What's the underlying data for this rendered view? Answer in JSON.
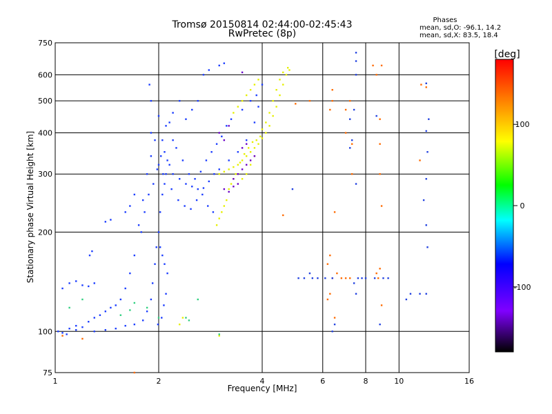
{
  "chart_data": {
    "type": "scatter",
    "title": "Tromsø 20150814 02:44:00-02:45:43",
    "subtitle": "RwPretec (8p)",
    "xlabel": "Frequency [MHz]",
    "ylabel": "Stationary phase Virtual Height [km]",
    "x_scale": "log",
    "y_scale": "log",
    "xlim": [
      1,
      16
    ],
    "ylim": [
      75,
      750
    ],
    "xticks": [
      1,
      2,
      4,
      6,
      8,
      10,
      16
    ],
    "yticks": [
      75,
      100,
      200,
      300,
      400,
      500,
      600,
      750
    ],
    "grid": true,
    "phase_stats": {
      "heading": "Phases",
      "line_o": "mean, sd,O: -96.1, 14.2",
      "line_x": "mean, sd,X:  83.5, 18.4"
    },
    "colorbar": {
      "label": "[deg]",
      "ticks": [
        100,
        0,
        -100
      ],
      "range": [
        -180,
        180
      ],
      "colors": [
        "#000000",
        "#8000ff",
        "#0000ff",
        "#00ffff",
        "#00ff00",
        "#ffff00",
        "#ff8000",
        "#ff0000"
      ]
    },
    "series": [
      {
        "description_key": "o-mode",
        "phase_deg": -100,
        "color": "#1a3cff",
        "points": [
          [
            1.02,
            100
          ],
          [
            1.05,
            99
          ],
          [
            1.1,
            102
          ],
          [
            1.15,
            101
          ],
          [
            1.2,
            103
          ],
          [
            1.3,
            100
          ],
          [
            1.4,
            101
          ],
          [
            1.5,
            102
          ],
          [
            1.6,
            104
          ],
          [
            1.7,
            105
          ],
          [
            1.8,
            108
          ],
          [
            1.85,
            115
          ],
          [
            1.9,
            125
          ],
          [
            1.92,
            140
          ],
          [
            1.95,
            160
          ],
          [
            1.97,
            180
          ],
          [
            2.0,
            200
          ],
          [
            2.02,
            230
          ],
          [
            2.05,
            260
          ],
          [
            2.08,
            280
          ],
          [
            2.1,
            300
          ],
          [
            2.15,
            320
          ],
          [
            2.2,
            300
          ],
          [
            2.3,
            290
          ],
          [
            2.4,
            280
          ],
          [
            2.5,
            275
          ],
          [
            2.6,
            270
          ],
          [
            2.7,
            272
          ],
          [
            2.8,
            285
          ],
          [
            2.9,
            300
          ],
          [
            3.0,
            310
          ],
          [
            3.2,
            330
          ],
          [
            3.4,
            350
          ],
          [
            3.6,
            380
          ],
          [
            3.8,
            430
          ],
          [
            3.9,
            480
          ],
          [
            4.0,
            560
          ],
          [
            1.05,
            135
          ],
          [
            1.1,
            140
          ],
          [
            1.15,
            142
          ],
          [
            1.2,
            138
          ],
          [
            1.25,
            137
          ],
          [
            1.3,
            140
          ],
          [
            1.28,
            175
          ],
          [
            1.26,
            170
          ],
          [
            1.4,
            215
          ],
          [
            1.45,
            218
          ],
          [
            1.6,
            230
          ],
          [
            1.65,
            240
          ],
          [
            1.7,
            260
          ],
          [
            1.85,
            300
          ],
          [
            1.9,
            400
          ],
          [
            1.9,
            500
          ],
          [
            1.88,
            560
          ],
          [
            2.0,
            450
          ],
          [
            2.05,
            380
          ],
          [
            2.1,
            420
          ],
          [
            2.2,
            380
          ],
          [
            2.4,
            440
          ],
          [
            2.6,
            500
          ],
          [
            2.7,
            600
          ],
          [
            2.8,
            620
          ],
          [
            3.0,
            640
          ],
          [
            3.1,
            650
          ],
          [
            2.5,
            470
          ],
          [
            2.3,
            500
          ],
          [
            2.2,
            460
          ],
          [
            2.15,
            430
          ],
          [
            2.08,
            350
          ],
          [
            2.0,
            320
          ],
          [
            1.95,
            380
          ],
          [
            1.8,
            250
          ],
          [
            1.75,
            210
          ],
          [
            1.7,
            170
          ],
          [
            1.65,
            150
          ],
          [
            1.6,
            135
          ],
          [
            1.5,
            120
          ],
          [
            1.4,
            115
          ],
          [
            1.3,
            110
          ],
          [
            1.9,
            340
          ],
          [
            2.06,
            300
          ],
          [
            2.12,
            330
          ],
          [
            2.25,
            360
          ],
          [
            2.35,
            330
          ],
          [
            2.45,
            300
          ],
          [
            2.55,
            290
          ],
          [
            2.65,
            305
          ],
          [
            2.75,
            330
          ],
          [
            2.85,
            350
          ],
          [
            2.95,
            370
          ],
          [
            3.05,
            390
          ],
          [
            3.15,
            420
          ],
          [
            3.25,
            440
          ],
          [
            3.5,
            470
          ],
          [
            3.7,
            500
          ],
          [
            3.85,
            520
          ],
          [
            1.78,
            200
          ],
          [
            1.82,
            230
          ],
          [
            1.87,
            260
          ],
          [
            1.93,
            280
          ],
          [
            1.98,
            310
          ],
          [
            2.03,
            340
          ],
          [
            2.18,
            270
          ],
          [
            2.28,
            250
          ],
          [
            2.38,
            240
          ],
          [
            2.48,
            235
          ],
          [
            2.58,
            250
          ],
          [
            2.68,
            260
          ],
          [
            2.78,
            240
          ],
          [
            2.88,
            230
          ],
          [
            1.55,
            125
          ],
          [
            1.45,
            118
          ],
          [
            1.35,
            112
          ],
          [
            1.25,
            107
          ],
          [
            1.15,
            104
          ],
          [
            1.08,
            98
          ],
          [
            2.02,
            180
          ],
          [
            2.05,
            170
          ],
          [
            2.08,
            160
          ],
          [
            2.12,
            150
          ],
          [
            2.1,
            130
          ],
          [
            2.07,
            120
          ],
          [
            2.04,
            110
          ],
          [
            1.99,
            105
          ]
        ]
      },
      {
        "description_key": "x-mode",
        "phase_deg": 85,
        "color": "#e6f000",
        "points": [
          [
            3.0,
            300
          ],
          [
            3.1,
            305
          ],
          [
            3.2,
            310
          ],
          [
            3.3,
            315
          ],
          [
            3.4,
            320
          ],
          [
            3.5,
            330
          ],
          [
            3.6,
            340
          ],
          [
            3.7,
            350
          ],
          [
            3.8,
            360
          ],
          [
            3.9,
            370
          ],
          [
            4.0,
            385
          ],
          [
            4.1,
            400
          ],
          [
            4.2,
            420
          ],
          [
            4.3,
            450
          ],
          [
            4.4,
            480
          ],
          [
            4.5,
            520
          ],
          [
            4.6,
            560
          ],
          [
            4.7,
            600
          ],
          [
            4.8,
            620
          ],
          [
            4.75,
            630
          ],
          [
            4.6,
            610
          ],
          [
            4.5,
            580
          ],
          [
            4.4,
            540
          ],
          [
            4.3,
            500
          ],
          [
            4.2,
            460
          ],
          [
            4.1,
            430
          ],
          [
            4.0,
            410
          ],
          [
            3.95,
            390
          ],
          [
            3.85,
            380
          ],
          [
            3.75,
            375
          ],
          [
            3.65,
            360
          ],
          [
            3.55,
            345
          ],
          [
            3.45,
            325
          ],
          [
            3.35,
            300
          ],
          [
            3.3,
            290
          ],
          [
            3.25,
            280
          ],
          [
            3.2,
            270
          ],
          [
            3.15,
            250
          ],
          [
            3.1,
            240
          ],
          [
            3.05,
            230
          ],
          [
            3.0,
            220
          ],
          [
            2.95,
            210
          ],
          [
            3.5,
            290
          ],
          [
            3.6,
            300
          ],
          [
            3.7,
            320
          ],
          [
            3.8,
            340
          ],
          [
            3.6,
            520
          ],
          [
            3.7,
            540
          ],
          [
            3.8,
            560
          ],
          [
            3.5,
            500
          ],
          [
            3.4,
            480
          ],
          [
            3.3,
            460
          ],
          [
            3.9,
            580
          ],
          [
            2.3,
            105
          ],
          [
            2.35,
            110
          ],
          [
            3.0,
            97
          ]
        ]
      },
      {
        "description_key": "purple",
        "phase_deg": -150,
        "color": "#6a00c8",
        "points": [
          [
            3.1,
            270
          ],
          [
            3.2,
            265
          ],
          [
            3.3,
            275
          ],
          [
            3.4,
            280
          ],
          [
            3.5,
            360
          ],
          [
            3.6,
            370
          ],
          [
            3.8,
            340
          ],
          [
            3.7,
            330
          ],
          [
            3.6,
            320
          ],
          [
            3.5,
            310
          ],
          [
            3.4,
            300
          ],
          [
            3.3,
            290
          ],
          [
            3.1,
            380
          ],
          [
            3.0,
            400
          ],
          [
            3.2,
            420
          ],
          [
            3.5,
            610
          ]
        ]
      },
      {
        "description_key": "scattered",
        "phase_deg": 150,
        "color": "#ff6a00",
        "points": [
          [
            6.4,
            540
          ],
          [
            6.4,
            500
          ],
          [
            6.3,
            470
          ],
          [
            7.0,
            470
          ],
          [
            7.2,
            500
          ],
          [
            7.0,
            400
          ],
          [
            8.4,
            640
          ],
          [
            8.6,
            600
          ],
          [
            8.8,
            440
          ],
          [
            8.8,
            370
          ],
          [
            8.8,
            300
          ],
          [
            8.9,
            240
          ],
          [
            8.8,
            155
          ],
          [
            8.7,
            145
          ],
          [
            8.9,
            120
          ],
          [
            8.6,
            150
          ],
          [
            11.6,
            560
          ],
          [
            11.5,
            330
          ],
          [
            7.3,
            300
          ],
          [
            7.3,
            370
          ],
          [
            6.5,
            230
          ],
          [
            6.3,
            170
          ],
          [
            6.2,
            160
          ],
          [
            6.4,
            145
          ],
          [
            6.6,
            150
          ],
          [
            6.8,
            145
          ],
          [
            7.0,
            145
          ],
          [
            7.2,
            145
          ],
          [
            6.5,
            110
          ],
          [
            6.3,
            130
          ],
          [
            5.0,
            490
          ],
          [
            5.5,
            500
          ],
          [
            1.7,
            75
          ],
          [
            1.2,
            95
          ],
          [
            1.05,
            97
          ],
          [
            4.6,
            225
          ],
          [
            12.0,
            550
          ],
          [
            8.9,
            640
          ],
          [
            6.2,
            125
          ]
        ]
      },
      {
        "description_key": "scattered-blue",
        "phase_deg": -100,
        "color": "#2040e0",
        "points": [
          [
            7.5,
            700
          ],
          [
            7.5,
            660
          ],
          [
            7.5,
            600
          ],
          [
            7.4,
            470
          ],
          [
            7.3,
            380
          ],
          [
            7.2,
            360
          ],
          [
            7.5,
            280
          ],
          [
            7.4,
            140
          ],
          [
            7.5,
            130
          ],
          [
            6.4,
            145
          ],
          [
            6.1,
            145
          ],
          [
            5.8,
            145
          ],
          [
            5.6,
            145
          ],
          [
            5.3,
            145
          ],
          [
            5.1,
            145
          ],
          [
            7.6,
            145
          ],
          [
            7.8,
            145
          ],
          [
            8.0,
            145
          ],
          [
            8.5,
            145
          ],
          [
            9.0,
            145
          ],
          [
            9.3,
            145
          ],
          [
            8.8,
            105
          ],
          [
            6.4,
            100
          ],
          [
            6.5,
            105
          ],
          [
            12.0,
            405
          ],
          [
            12.2,
            440
          ],
          [
            12.1,
            350
          ],
          [
            12.0,
            290
          ],
          [
            11.8,
            250
          ],
          [
            12.0,
            210
          ],
          [
            12.1,
            180
          ],
          [
            12.0,
            130
          ],
          [
            11.5,
            130
          ],
          [
            10.8,
            130
          ],
          [
            10.5,
            125
          ],
          [
            4.9,
            270
          ],
          [
            7.2,
            440
          ],
          [
            8.6,
            450
          ],
          [
            5.5,
            150
          ],
          [
            12.0,
            565
          ]
        ]
      },
      {
        "description_key": "cyan-green",
        "phase_deg": 20,
        "color": "#30d080",
        "points": [
          [
            2.4,
            110
          ],
          [
            2.45,
            108
          ],
          [
            2.6,
            125
          ],
          [
            3.0,
            98
          ],
          [
            1.55,
            112
          ],
          [
            1.65,
            116
          ],
          [
            1.85,
            118
          ],
          [
            2.0,
            110
          ],
          [
            1.2,
            125
          ],
          [
            1.1,
            118
          ],
          [
            1.7,
            122
          ]
        ]
      }
    ]
  }
}
